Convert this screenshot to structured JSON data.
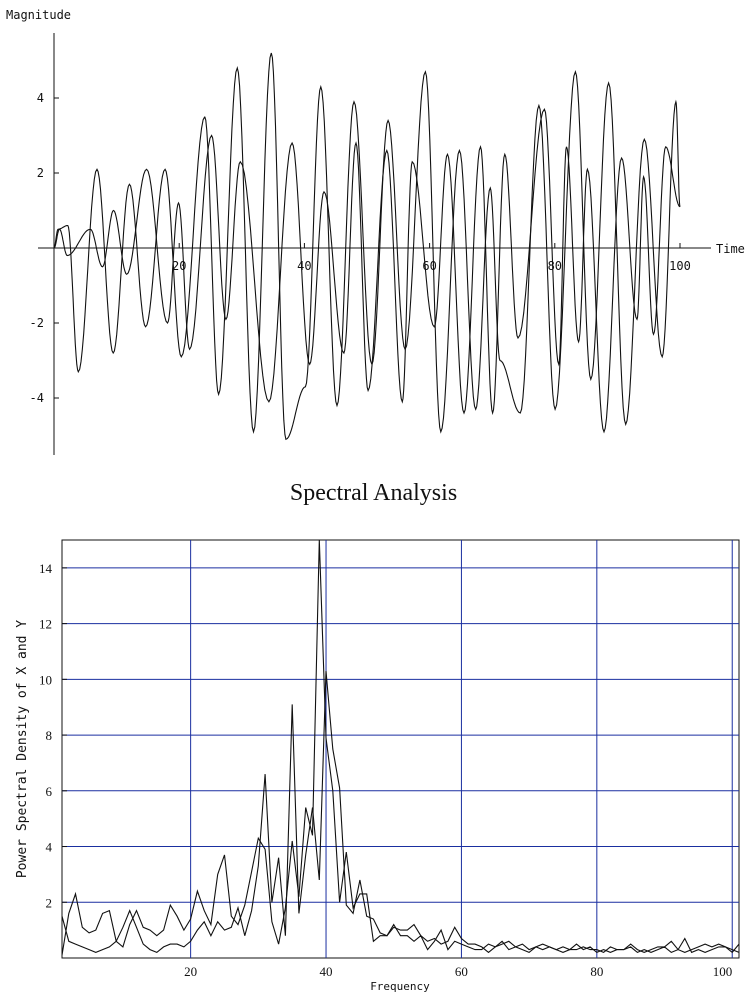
{
  "chart_data": [
    {
      "type": "line",
      "title": "",
      "xlabel": "Time",
      "ylabel": "Magnitude",
      "xlim": [
        0,
        101
      ],
      "ylim": [
        -5.5,
        5.5
      ],
      "xticks": [
        20,
        40,
        60,
        80,
        100
      ],
      "yticks": [
        -4,
        -2,
        2,
        4
      ],
      "xtick_labels": [
        "20",
        "40",
        "60",
        "80",
        "100"
      ],
      "ytick_labels": [
        "-4",
        "-2",
        "2",
        "4"
      ],
      "grid": false,
      "series": [
        {
          "peaks": [
            [
              0.5,
              0.5
            ],
            [
              1.7,
              0.6
            ],
            [
              3.0,
              -3.3
            ],
            [
              5.3,
              2.1
            ],
            [
              7.3,
              -2.8
            ],
            [
              9.3,
              1.7
            ],
            [
              11.3,
              -2.1
            ],
            [
              13.7,
              2.1
            ],
            [
              15.7,
              -2.9
            ],
            [
              18.6,
              3.5
            ],
            [
              20.3,
              -3.9
            ],
            [
              22.6,
              4.8
            ],
            [
              24.6,
              -4.9
            ],
            [
              26.8,
              5.2
            ],
            [
              28.6,
              -5.1
            ],
            [
              31.0,
              -3.7
            ],
            [
              32.9,
              4.3
            ],
            [
              34.9,
              -4.2
            ],
            [
              37.0,
              3.9
            ],
            [
              39.2,
              -3.1
            ],
            [
              41.2,
              3.4
            ],
            [
              43.3,
              -2.7
            ],
            [
              45.8,
              4.7
            ],
            [
              47.7,
              -4.9
            ],
            [
              50.0,
              2.6
            ],
            [
              52.0,
              -4.3
            ],
            [
              53.8,
              1.6
            ],
            [
              55.0,
              -3.0
            ],
            [
              57.5,
              -4.4
            ],
            [
              59.8,
              3.8
            ],
            [
              61.8,
              -4.3
            ],
            [
              64.3,
              4.7
            ],
            [
              66.2,
              -3.5
            ],
            [
              68.4,
              4.4
            ],
            [
              70.5,
              -4.7
            ],
            [
              72.8,
              2.9
            ],
            [
              75.0,
              -2.9
            ],
            [
              76.7,
              3.9
            ],
            [
              77.2,
              1.1
            ]
          ],
          "x_scale": "time_0_101"
        },
        {
          "peaks": [
            [
              0.5,
              0.5
            ],
            [
              1.2,
              -0.2
            ],
            [
              3.3,
              0.5
            ],
            [
              4.4,
              -0.5
            ],
            [
              5.4,
              1.0
            ],
            [
              6.6,
              -0.7
            ],
            [
              8.4,
              2.1
            ],
            [
              10.3,
              -2.0
            ],
            [
              11.3,
              1.2
            ],
            [
              12.3,
              -2.7
            ],
            [
              14.3,
              3.0
            ],
            [
              15.6,
              -1.9
            ],
            [
              16.9,
              2.3
            ],
            [
              19.5,
              -4.1
            ],
            [
              21.6,
              2.8
            ],
            [
              23.2,
              -3.1
            ],
            [
              24.5,
              1.5
            ],
            [
              26.3,
              -2.8
            ],
            [
              27.4,
              2.8
            ],
            [
              28.5,
              -3.8
            ],
            [
              30.2,
              2.6
            ],
            [
              31.6,
              -4.1
            ],
            [
              32.5,
              2.3
            ],
            [
              34.5,
              -2.1
            ],
            [
              35.7,
              2.5
            ],
            [
              37.2,
              -4.4
            ],
            [
              38.7,
              2.7
            ],
            [
              39.8,
              -4.4
            ],
            [
              40.9,
              2.5
            ],
            [
              42.1,
              -2.4
            ],
            [
              44.5,
              3.7
            ],
            [
              45.8,
              -3.1
            ],
            [
              46.5,
              2.7
            ],
            [
              47.6,
              -2.5
            ],
            [
              48.4,
              2.1
            ],
            [
              49.9,
              -4.9
            ],
            [
              51.5,
              2.4
            ],
            [
              52.9,
              -1.9
            ],
            [
              53.5,
              1.9
            ],
            [
              54.4,
              -2.3
            ],
            [
              55.5,
              2.7
            ],
            [
              56.8,
              1.1
            ]
          ],
          "x_scale": "time_0_101"
        }
      ]
    },
    {
      "type": "line",
      "title": "Spectral Analysis",
      "xlabel": "Frequency",
      "ylabel": "Power Spectral Density of X and Y",
      "xlim": [
        1,
        101
      ],
      "ylim": [
        0,
        15
      ],
      "xticks": [
        20,
        40,
        60,
        80,
        100
      ],
      "yticks": [
        2,
        4,
        6,
        8,
        10,
        12,
        14
      ],
      "xtick_labels": [
        "20",
        "40",
        "60",
        "80",
        "100"
      ],
      "ytick_labels": [
        "2",
        "4",
        "6",
        "8",
        "10",
        "12",
        "14"
      ],
      "grid": true,
      "grid_color": "#1a2fa0",
      "series": [
        {
          "x": [
            1,
            2,
            3,
            4,
            5,
            6,
            7,
            8,
            9,
            10,
            11,
            12,
            13,
            14,
            15,
            16,
            17,
            18,
            19,
            20,
            21,
            22,
            23,
            24,
            25,
            26,
            27,
            28,
            29,
            30,
            31,
            32,
            33,
            34,
            35,
            36,
            37,
            38,
            39,
            40,
            41,
            42,
            43,
            44,
            45,
            46,
            47,
            48,
            49,
            50,
            51,
            52,
            53,
            54,
            55,
            56,
            57,
            58,
            59,
            60,
            61,
            62,
            63,
            64,
            65,
            66,
            67,
            68,
            69,
            70,
            71,
            72,
            73,
            74,
            75,
            76,
            77,
            78,
            79,
            80,
            81,
            82,
            83,
            84,
            85,
            86,
            87,
            88,
            89,
            90,
            91,
            92,
            93,
            94,
            95,
            96,
            97,
            98,
            99,
            100,
            101
          ],
          "values": [
            0.1,
            1.6,
            2.3,
            1.1,
            0.9,
            1.0,
            1.6,
            1.7,
            0.6,
            0.4,
            1.2,
            1.7,
            1.1,
            1.0,
            0.8,
            1.0,
            1.9,
            1.5,
            1.0,
            1.4,
            2.4,
            1.7,
            1.2,
            3.0,
            3.7,
            1.5,
            1.2,
            1.9,
            3.1,
            4.3,
            3.9,
            1.3,
            0.5,
            1.8,
            4.2,
            2.2,
            5.4,
            4.4,
            15.0,
            7.9,
            6.0,
            2.0,
            3.8,
            1.8,
            2.3,
            2.3,
            0.6,
            0.8,
            0.8,
            1.2,
            0.8,
            0.8,
            0.6,
            0.8,
            0.3,
            0.6,
            1.0,
            0.3,
            0.6,
            0.5,
            0.4,
            0.3,
            0.3,
            0.5,
            0.4,
            0.6,
            0.3,
            0.4,
            0.5,
            0.3,
            0.4,
            0.3,
            0.4,
            0.3,
            0.2,
            0.3,
            0.3,
            0.4,
            0.3,
            0.3,
            0.2,
            0.4,
            0.3,
            0.3,
            0.5,
            0.3,
            0.2,
            0.3,
            0.4,
            0.4,
            0.6,
            0.3,
            0.2,
            0.3,
            0.4,
            0.5,
            0.4,
            0.5,
            0.4,
            0.2,
            0.5
          ]
        },
        {
          "x": [
            1,
            2,
            3,
            4,
            5,
            6,
            7,
            8,
            9,
            10,
            11,
            12,
            13,
            14,
            15,
            16,
            17,
            18,
            19,
            20,
            21,
            22,
            23,
            24,
            25,
            26,
            27,
            28,
            29,
            30,
            31,
            32,
            33,
            34,
            35,
            36,
            37,
            38,
            39,
            40,
            41,
            42,
            43,
            44,
            45,
            46,
            47,
            48,
            49,
            50,
            51,
            52,
            53,
            54,
            55,
            56,
            57,
            58,
            59,
            60,
            61,
            62,
            63,
            64,
            65,
            66,
            67,
            68,
            69,
            70,
            71,
            72,
            73,
            74,
            75,
            76,
            77,
            78,
            79,
            80,
            81,
            82,
            83,
            84,
            85,
            86,
            87,
            88,
            89,
            90,
            91,
            92,
            93,
            94,
            95,
            96,
            97,
            98,
            99,
            100,
            101
          ],
          "values": [
            1.5,
            0.6,
            0.5,
            0.4,
            0.3,
            0.2,
            0.3,
            0.4,
            0.6,
            1.1,
            1.7,
            1.1,
            0.5,
            0.3,
            0.2,
            0.4,
            0.5,
            0.5,
            0.4,
            0.6,
            1.0,
            1.3,
            0.8,
            1.3,
            1.0,
            1.1,
            1.8,
            0.8,
            1.7,
            3.3,
            6.6,
            2.0,
            3.6,
            0.8,
            9.1,
            1.6,
            3.7,
            5.4,
            2.8,
            10.3,
            7.5,
            6.1,
            1.9,
            1.6,
            2.8,
            1.5,
            1.4,
            0.9,
            0.8,
            1.1,
            1.0,
            1.0,
            1.2,
            0.8,
            0.6,
            0.7,
            0.5,
            0.6,
            1.1,
            0.7,
            0.5,
            0.5,
            0.4,
            0.2,
            0.4,
            0.5,
            0.6,
            0.4,
            0.3,
            0.2,
            0.4,
            0.5,
            0.4,
            0.3,
            0.4,
            0.3,
            0.5,
            0.3,
            0.4,
            0.2,
            0.3,
            0.2,
            0.3,
            0.3,
            0.4,
            0.2,
            0.3,
            0.2,
            0.3,
            0.4,
            0.2,
            0.3,
            0.7,
            0.2,
            0.3,
            0.2,
            0.3,
            0.4,
            0.4,
            0.3,
            0.2
          ]
        }
      ]
    }
  ]
}
